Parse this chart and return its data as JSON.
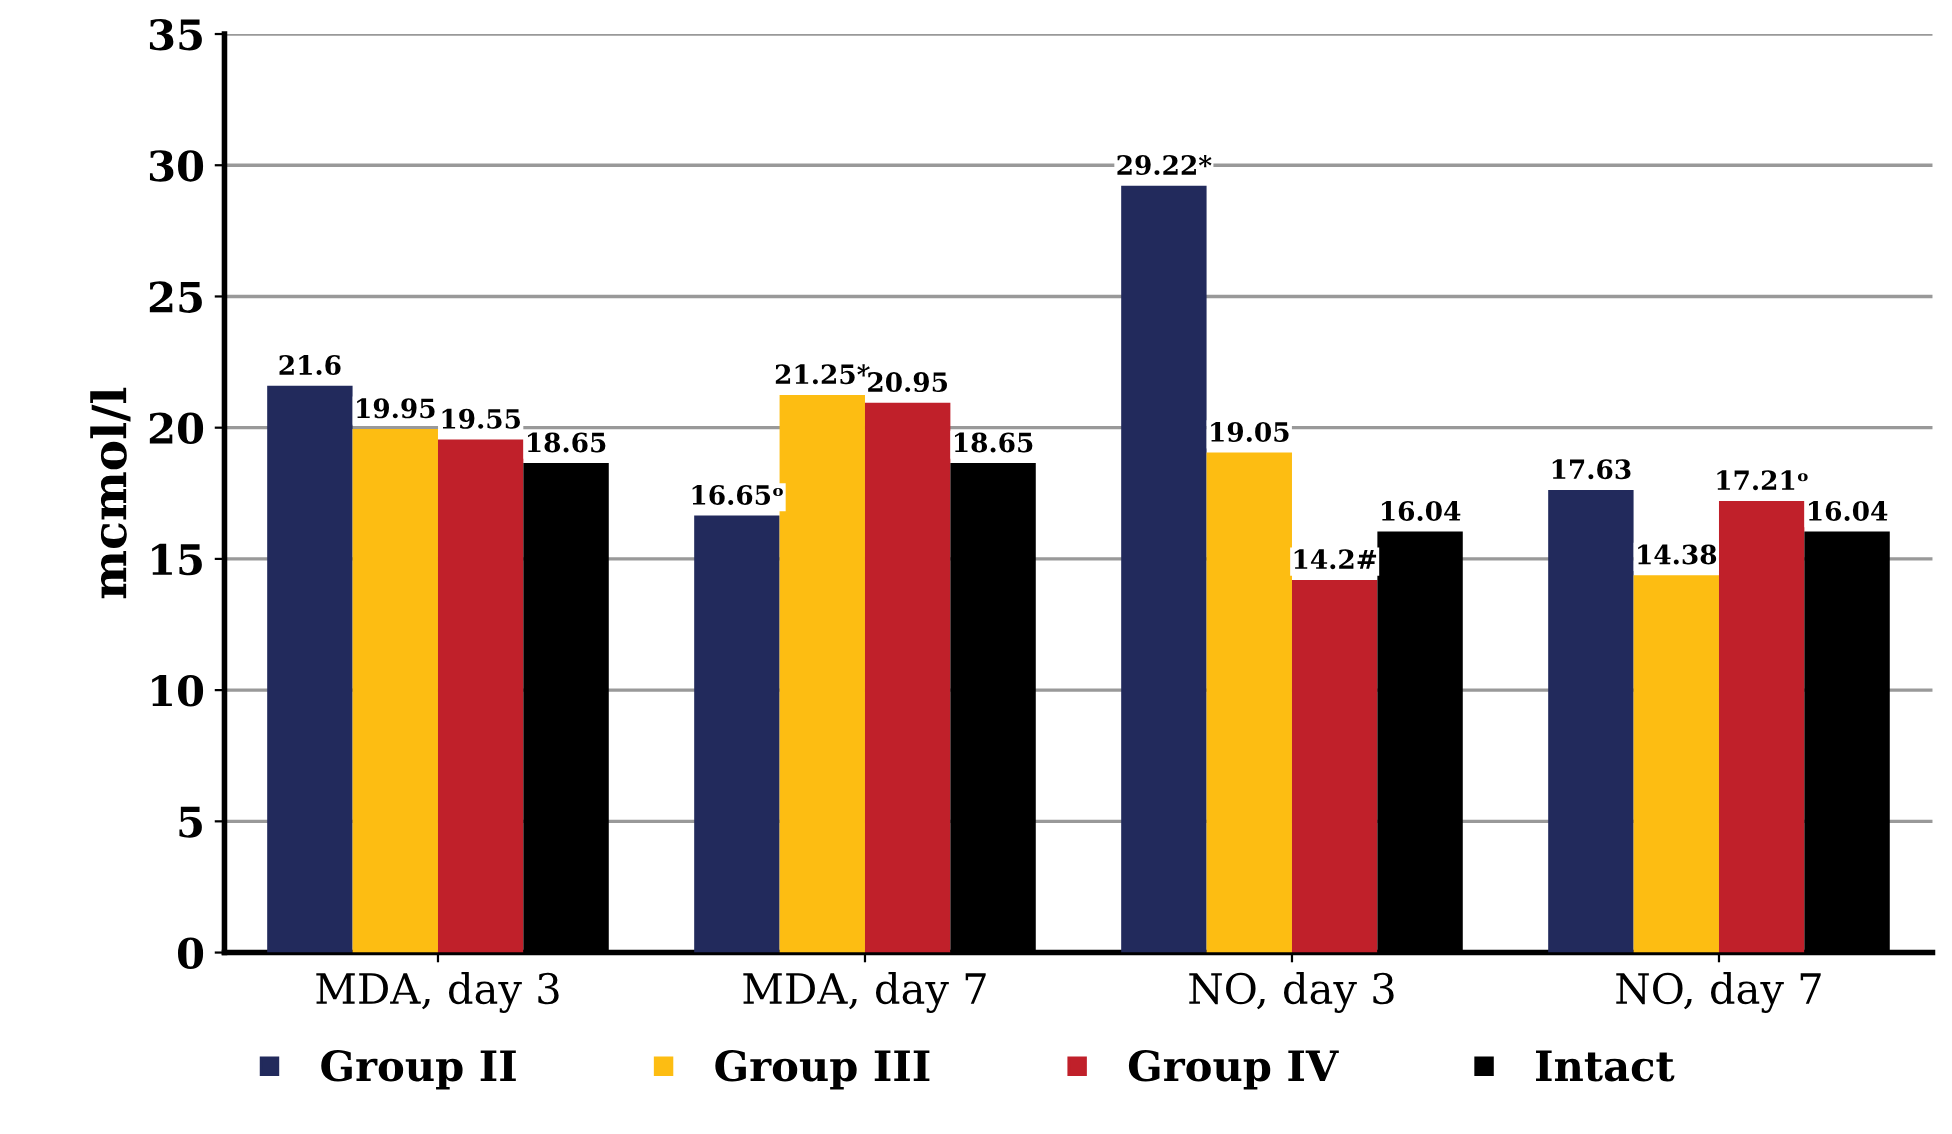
{
  "chart_data": {
    "type": "bar",
    "ylabel": "mcmol/l",
    "categories": [
      "MDA, day 3",
      "MDA, day 7",
      "NO, day 3",
      "NO, day 7"
    ],
    "series": [
      {
        "name": "Group II",
        "color": "#222a5c",
        "values": [
          21.6,
          16.65,
          29.22,
          17.63
        ],
        "value_labels": [
          "21.6",
          "16.65ᵒ",
          "29.22*",
          "17.63"
        ]
      },
      {
        "name": "Group III",
        "color": "#fdbd12",
        "values": [
          19.95,
          21.25,
          19.05,
          14.38
        ],
        "value_labels": [
          "19.95",
          "21.25*",
          "19.05",
          "14.38"
        ]
      },
      {
        "name": "Group IV",
        "color": "#c0202a",
        "values": [
          19.55,
          20.95,
          14.2,
          17.21
        ],
        "value_labels": [
          "19.55",
          "20.95",
          "14.2#",
          "17.21ᵒ"
        ]
      },
      {
        "name": "Intact",
        "color": "#000000",
        "values": [
          18.65,
          18.65,
          16.04,
          16.04
        ],
        "value_labels": [
          "18.65",
          "18.65",
          "16.04",
          "16.04"
        ]
      }
    ],
    "ylim": [
      0,
      35
    ],
    "yticks": [
      0,
      5,
      10,
      15,
      20,
      25,
      30,
      35
    ],
    "grid": "y",
    "legend": "bottom"
  }
}
